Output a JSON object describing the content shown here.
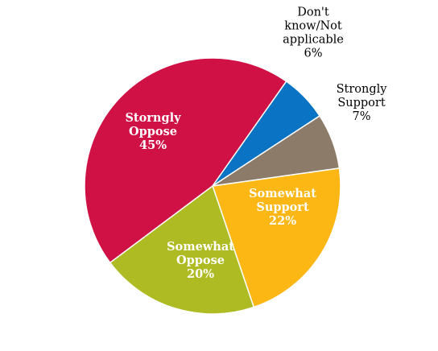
{
  "chart_data": {
    "type": "pie",
    "title": "",
    "slices": [
      {
        "label_lines": [
          "Somewhat",
          "Support",
          "22%"
        ],
        "value": 22,
        "color": "#fcb714",
        "text_color": "#ffffff"
      },
      {
        "label_lines": [
          "Somewhat",
          "Oppose",
          "20%"
        ],
        "value": 20,
        "color": "#afbb22",
        "text_color": "#ffffff"
      },
      {
        "label_lines": [
          "Storngly",
          "Oppose",
          "45%"
        ],
        "value": 45,
        "color": "#d01145",
        "text_color": "#ffffff"
      },
      {
        "label_lines": [
          "Don't",
          "know/Not",
          "applicable",
          "6%"
        ],
        "value": 6,
        "color": "#0a73c4",
        "text_color": "#000000"
      },
      {
        "label_lines": [
          "Strongly",
          "Support",
          "7%"
        ],
        "value": 7,
        "color": "#8c7b69",
        "text_color": "#000000"
      }
    ]
  }
}
